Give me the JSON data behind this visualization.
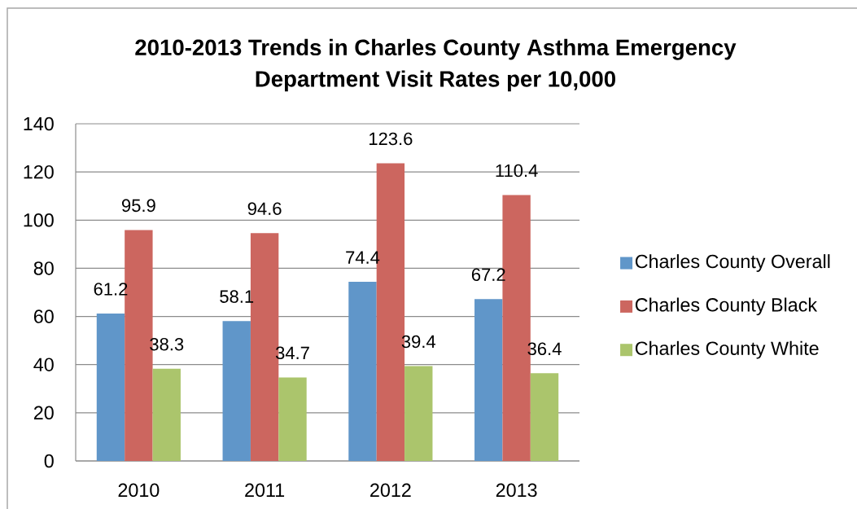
{
  "chart_data": {
    "type": "bar",
    "title": "2010-2013 Trends in Charles County Asthma Emergency Department Visit Rates per 10,000",
    "categories": [
      "2010",
      "2011",
      "2012",
      "2013"
    ],
    "series": [
      {
        "name": "Charles County Overall",
        "color": "#6096c9",
        "values": [
          61.2,
          58.1,
          74.4,
          67.2
        ]
      },
      {
        "name": "Charles County Black",
        "color": "#cc665f",
        "values": [
          95.9,
          94.6,
          123.6,
          110.4
        ]
      },
      {
        "name": "Charles County White",
        "color": "#abc56c",
        "values": [
          38.3,
          34.7,
          39.4,
          36.4
        ]
      }
    ],
    "ylim": [
      0,
      140
    ],
    "yticks": [
      0,
      20,
      40,
      60,
      80,
      100,
      120,
      140
    ],
    "grid": "y",
    "legend": "right",
    "data_labels": true
  }
}
